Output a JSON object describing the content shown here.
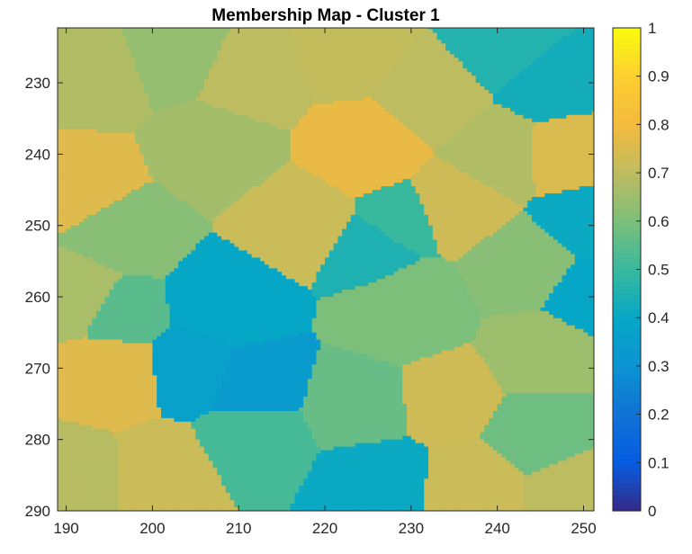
{
  "chart_data": {
    "type": "heatmap",
    "title": "Membership Map - Cluster 1",
    "xlabel": "",
    "ylabel": "",
    "xlim": [
      189,
      251.2
    ],
    "ylim": [
      290,
      222.3
    ],
    "y_reversed": true,
    "x_ticks": [
      190,
      200,
      210,
      220,
      230,
      240,
      250
    ],
    "y_ticks": [
      230,
      240,
      250,
      260,
      270,
      280,
      290
    ],
    "colorbar": {
      "colormap": "parula",
      "clim": [
        0,
        1
      ],
      "ticks": [
        0,
        0.1,
        0.2,
        0.3,
        0.4,
        0.5,
        0.6,
        0.7,
        0.8,
        0.9,
        1
      ],
      "tick_labels": [
        "0",
        "0.1",
        "0.2",
        "0.3",
        "0.4",
        "0.5",
        "0.6",
        "0.7",
        "0.8",
        "0.9",
        "1"
      ]
    },
    "regions": [
      {
        "value": 0.68,
        "cx": 193,
        "cy": 229,
        "r": 6
      },
      {
        "value": 0.64,
        "cx": 203,
        "cy": 226,
        "r": 6
      },
      {
        "value": 0.7,
        "cx": 211,
        "cy": 229,
        "r": 6
      },
      {
        "value": 0.71,
        "cx": 223,
        "cy": 226,
        "r": 5
      },
      {
        "value": 0.78,
        "cx": 225,
        "cy": 239,
        "r": 6
      },
      {
        "value": 0.7,
        "cx": 232,
        "cy": 232,
        "r": 6
      },
      {
        "value": 0.46,
        "cx": 241,
        "cy": 225,
        "r": 5
      },
      {
        "value": 0.43,
        "cx": 246,
        "cy": 230,
        "r": 4
      },
      {
        "value": 0.68,
        "cx": 240,
        "cy": 240,
        "r": 5
      },
      {
        "value": 0.75,
        "cx": 248,
        "cy": 240,
        "r": 4
      },
      {
        "value": 0.66,
        "cx": 207,
        "cy": 239,
        "r": 6
      },
      {
        "value": 0.76,
        "cx": 192,
        "cy": 244,
        "r": 5
      },
      {
        "value": 0.62,
        "cx": 197,
        "cy": 251,
        "r": 5
      },
      {
        "value": 0.72,
        "cx": 217,
        "cy": 250,
        "r": 6
      },
      {
        "value": 0.5,
        "cx": 229,
        "cy": 249,
        "r": 3
      },
      {
        "value": 0.73,
        "cx": 235,
        "cy": 247,
        "r": 5
      },
      {
        "value": 0.41,
        "cx": 250,
        "cy": 249,
        "r": 2
      },
      {
        "value": 0.62,
        "cx": 243,
        "cy": 256,
        "r": 5
      },
      {
        "value": 0.4,
        "cx": 250,
        "cy": 260,
        "r": 2
      },
      {
        "value": 0.4,
        "cx": 209,
        "cy": 261,
        "r": 7
      },
      {
        "value": 0.45,
        "cx": 225,
        "cy": 254,
        "r": 4
      },
      {
        "value": 0.6,
        "cx": 229,
        "cy": 262,
        "r": 8
      },
      {
        "value": 0.67,
        "cx": 192,
        "cy": 260,
        "r": 4
      },
      {
        "value": 0.55,
        "cx": 196,
        "cy": 262,
        "r": 3
      },
      {
        "value": 0.76,
        "cx": 195,
        "cy": 271,
        "r": 5
      },
      {
        "value": 0.69,
        "cx": 191,
        "cy": 285,
        "r": 4
      },
      {
        "value": 0.72,
        "cx": 201,
        "cy": 285,
        "r": 5
      },
      {
        "value": 0.37,
        "cx": 205,
        "cy": 270,
        "r": 4
      },
      {
        "value": 0.34,
        "cx": 212,
        "cy": 272,
        "r": 5
      },
      {
        "value": 0.52,
        "cx": 212,
        "cy": 280,
        "r": 5
      },
      {
        "value": 0.57,
        "cx": 224,
        "cy": 275,
        "r": 6
      },
      {
        "value": 0.41,
        "cx": 226,
        "cy": 286,
        "r": 6
      },
      {
        "value": 0.73,
        "cx": 234,
        "cy": 274,
        "r": 5
      },
      {
        "value": 0.72,
        "cx": 237,
        "cy": 287,
        "r": 5
      },
      {
        "value": 0.65,
        "cx": 245,
        "cy": 268,
        "r": 5
      },
      {
        "value": 0.58,
        "cx": 245,
        "cy": 279,
        "r": 5
      },
      {
        "value": 0.7,
        "cx": 249,
        "cy": 287,
        "r": 4
      }
    ]
  }
}
